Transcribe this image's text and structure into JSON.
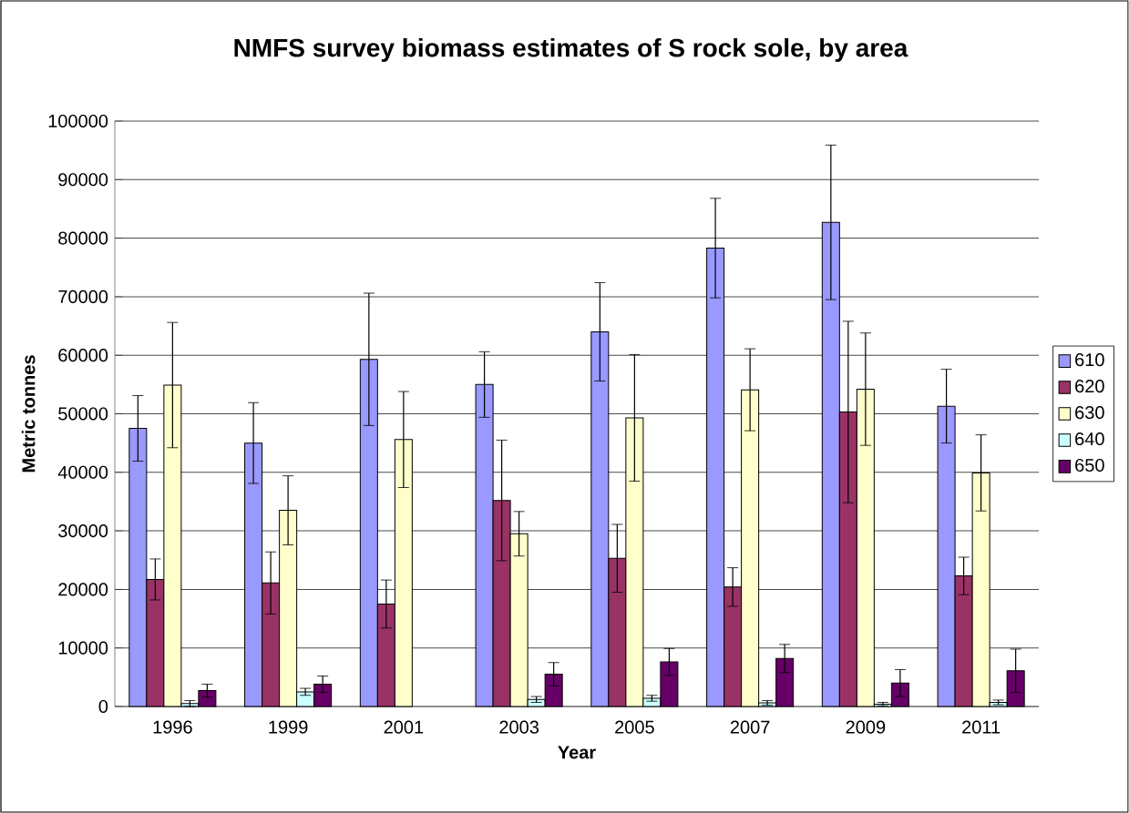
{
  "chart_data": {
    "type": "bar",
    "title": "NMFS survey biomass estimates of S rock sole, by area",
    "xlabel": "Year",
    "ylabel": "Metric tonnes",
    "categories": [
      "1996",
      "1999",
      "2001",
      "2003",
      "2005",
      "2007",
      "2009",
      "2011"
    ],
    "series": [
      {
        "name": "610",
        "color": "#9999ff",
        "values": [
          47500,
          45000,
          59300,
          55000,
          64000,
          78300,
          82700,
          51300
        ],
        "errors": [
          5600,
          6900,
          11300,
          5600,
          8400,
          8500,
          13200,
          6300
        ]
      },
      {
        "name": "620",
        "color": "#993366",
        "values": [
          21700,
          21100,
          17500,
          35200,
          25300,
          20400,
          50300,
          22300
        ],
        "errors": [
          3500,
          5300,
          4100,
          10300,
          5800,
          3300,
          15500,
          3200
        ]
      },
      {
        "name": "630",
        "color": "#ffffcc",
        "values": [
          54900,
          33500,
          45600,
          29500,
          49300,
          54100,
          54200,
          39900
        ],
        "errors": [
          10700,
          5900,
          8200,
          3800,
          10800,
          7000,
          9600,
          6500
        ]
      },
      {
        "name": "640",
        "color": "#ccffff",
        "values": [
          500,
          2500,
          null,
          1200,
          1400,
          600,
          400,
          700
        ],
        "errors": [
          500,
          600,
          null,
          500,
          500,
          400,
          300,
          400
        ]
      },
      {
        "name": "650",
        "color": "#660066",
        "values": [
          2700,
          3800,
          null,
          5500,
          7600,
          8200,
          4000,
          6100
        ],
        "errors": [
          1100,
          1400,
          null,
          2000,
          2300,
          2400,
          2300,
          3700
        ]
      }
    ],
    "ylim": [
      0,
      100000
    ],
    "yticks": [
      0,
      10000,
      20000,
      30000,
      40000,
      50000,
      60000,
      70000,
      80000,
      90000,
      100000
    ],
    "grid": "y",
    "legend": "right"
  }
}
